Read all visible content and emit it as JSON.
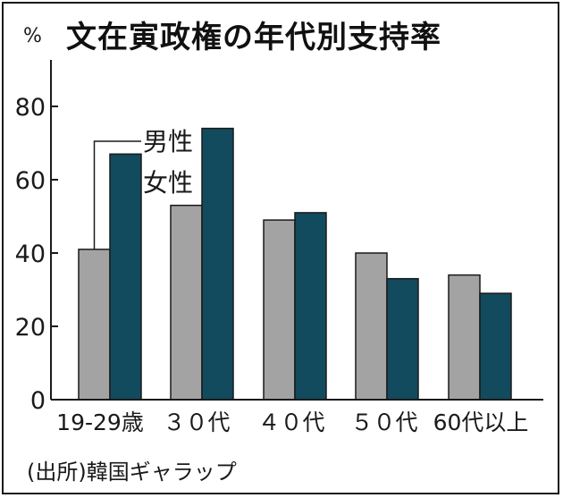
{
  "header": {
    "unit": "%",
    "title": "文在寅政権の年代別支持率"
  },
  "footer": {
    "source": "(出所)韓国ギャラップ"
  },
  "colors": {
    "male": "#a3a3a3",
    "female": "#124a5e",
    "axis": "#1a1a1a",
    "text": "#1a1a1a"
  },
  "chart_data": {
    "type": "bar",
    "title": "文在寅政権の年代別支持率",
    "ylabel": "%",
    "xlabel": "",
    "ylim": [
      0,
      90
    ],
    "yticks": [
      0,
      20,
      40,
      60,
      80
    ],
    "grid": false,
    "categories": [
      "19-29歳",
      "３０代",
      "４０代",
      "５０代",
      "60代以上"
    ],
    "series": [
      {
        "name": "男性",
        "values": [
          41,
          53,
          49,
          40,
          34
        ]
      },
      {
        "name": "女性",
        "values": [
          67,
          74,
          51,
          33,
          29
        ]
      }
    ]
  }
}
